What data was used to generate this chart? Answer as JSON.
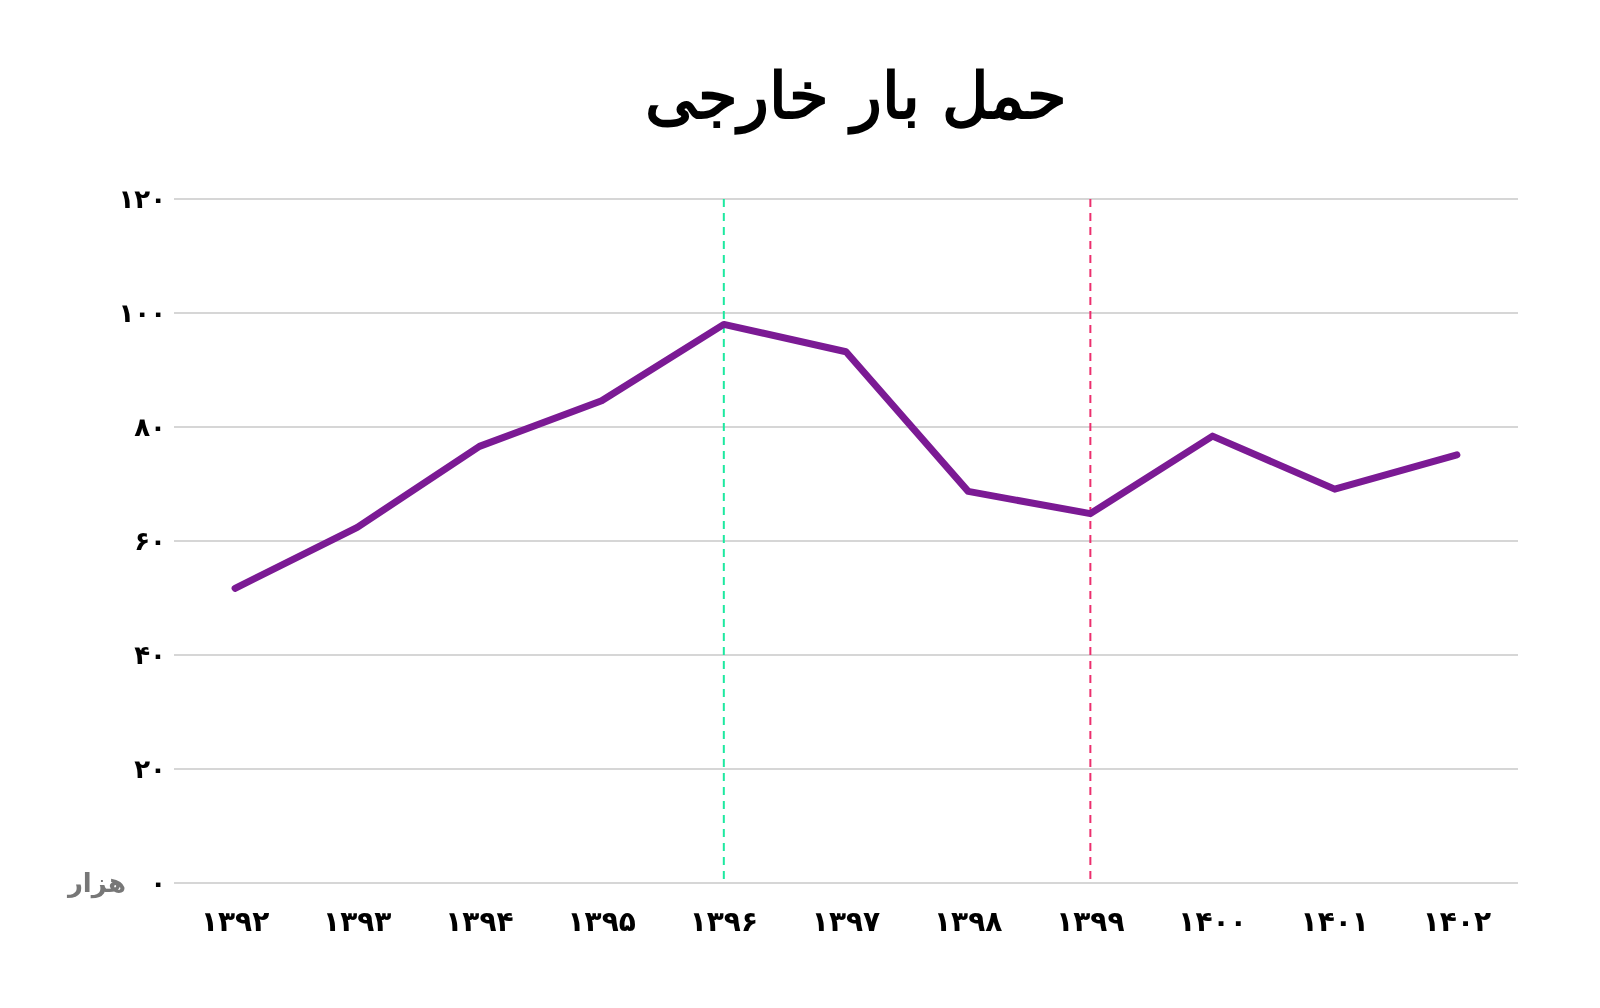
{
  "chart_data": {
    "type": "line",
    "title": "حمل بار خارجی",
    "ylabel": "هزار",
    "categories": [
      "۱۳۹۲",
      "۱۳۹۳",
      "۱۳۹۴",
      "۱۳۹۵",
      "۱۳۹۶",
      "۱۳۹۷",
      "۱۳۹۸",
      "۱۳۹۹",
      "۱۴۰۰",
      "۱۴۰۱",
      "۱۴۰۲"
    ],
    "series": [
      {
        "color": "#7b1a94",
        "values": [
          51.7,
          62.4,
          76.6,
          84.6,
          98,
          93.2,
          68.7,
          64.8,
          78.4,
          69.1,
          75.1
        ]
      }
    ],
    "ylim": [
      0,
      120
    ],
    "yticks": [
      {
        "value": 0,
        "label": "۰"
      },
      {
        "value": 20,
        "label": "۲۰"
      },
      {
        "value": 40,
        "label": "۴۰"
      },
      {
        "value": 60,
        "label": "۶۰"
      },
      {
        "value": 80,
        "label": "۸۰"
      },
      {
        "value": 100,
        "label": "۱۰۰"
      },
      {
        "value": 120,
        "label": "۱۲۰"
      }
    ],
    "grid": "y",
    "marker": "none",
    "line_style": "solid",
    "ref_lines": [
      {
        "axis": "x",
        "value": "۱۳۹۶",
        "color": "#1de9a0",
        "line_style": "dashed"
      },
      {
        "axis": "x",
        "value": "۱۳۹۹",
        "color": "#ec2f6e",
        "line_style": "dashed"
      }
    ]
  }
}
